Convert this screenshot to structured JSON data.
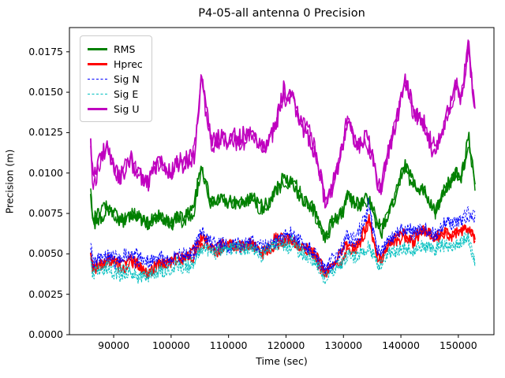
{
  "window": {
    "title": "P4-05-all antenna 0 Precision"
  },
  "chart_data": {
    "type": "line",
    "title": "P4-05-all antenna 0 Precision",
    "xlabel": "Time (sec)",
    "ylabel": "Precision (m)",
    "xlim": [
      82300,
      156200
    ],
    "ylim": [
      0,
      0.019
    ],
    "xticks": [
      90000,
      100000,
      110000,
      120000,
      130000,
      140000,
      150000
    ],
    "yticks": [
      0.0,
      0.0025,
      0.005,
      0.0075,
      0.01,
      0.0125,
      0.015,
      0.0175
    ],
    "grid": false,
    "legend_position": "upper left",
    "x": [
      86000,
      86400,
      87000,
      88000,
      89000,
      90000,
      91000,
      92000,
      93000,
      94000,
      95000,
      96000,
      97000,
      98000,
      99000,
      100000,
      101000,
      102000,
      103000,
      104000,
      105300,
      106000,
      107000,
      108000,
      109000,
      110000,
      111000,
      112000,
      113000,
      114000,
      115000,
      116000,
      117000,
      118000,
      119000,
      119600,
      120300,
      121000,
      122000,
      123000,
      124000,
      125000,
      126000,
      126800,
      127500,
      128000,
      129000,
      130000,
      130700,
      131500,
      132000,
      133000,
      134000,
      134400,
      135000,
      136000,
      136700,
      137000,
      138000,
      139000,
      140000,
      140700,
      141500,
      142000,
      143000,
      144000,
      145000,
      146000,
      147000,
      148000,
      149000,
      149700,
      150500,
      151000,
      151800,
      152300,
      153000
    ],
    "series": [
      {
        "name": "RMS",
        "color": "#008000",
        "style": "solid",
        "linewidth": 1.8,
        "jitter": 0.00042,
        "wobble": 0.00035,
        "values": [
          0.0084,
          0.0068,
          0.0072,
          0.0076,
          0.0079,
          0.0073,
          0.007,
          0.0073,
          0.0075,
          0.0072,
          0.0069,
          0.0067,
          0.0071,
          0.0074,
          0.0072,
          0.0071,
          0.0075,
          0.0073,
          0.0075,
          0.0078,
          0.0105,
          0.0092,
          0.0082,
          0.0083,
          0.0086,
          0.0083,
          0.0084,
          0.0083,
          0.0084,
          0.0086,
          0.0081,
          0.0079,
          0.0081,
          0.0087,
          0.0092,
          0.0096,
          0.0092,
          0.0097,
          0.0089,
          0.0085,
          0.0083,
          0.0077,
          0.0066,
          0.0059,
          0.0063,
          0.0066,
          0.0072,
          0.0079,
          0.0089,
          0.0082,
          0.008,
          0.0079,
          0.0082,
          0.0083,
          0.0078,
          0.0068,
          0.0066,
          0.007,
          0.0078,
          0.0086,
          0.0096,
          0.0104,
          0.0098,
          0.0094,
          0.0089,
          0.0088,
          0.0081,
          0.0077,
          0.0084,
          0.009,
          0.0097,
          0.0102,
          0.0097,
          0.0106,
          0.0121,
          0.0105,
          0.0091
        ]
      },
      {
        "name": "Hprec",
        "color": "#ff0000",
        "style": "solid",
        "linewidth": 1.8,
        "jitter": 0.00035,
        "wobble": 0.0003,
        "values": [
          0.0052,
          0.0041,
          0.0044,
          0.0045,
          0.0047,
          0.0044,
          0.0042,
          0.0043,
          0.0044,
          0.0042,
          0.0041,
          0.004,
          0.0042,
          0.0044,
          0.0043,
          0.0044,
          0.0047,
          0.0046,
          0.0048,
          0.005,
          0.0058,
          0.0056,
          0.0054,
          0.0053,
          0.0055,
          0.0054,
          0.0055,
          0.0054,
          0.0055,
          0.0057,
          0.0054,
          0.0052,
          0.0054,
          0.0057,
          0.0058,
          0.0059,
          0.0058,
          0.0059,
          0.0055,
          0.0052,
          0.0051,
          0.0048,
          0.0043,
          0.0039,
          0.0041,
          0.0043,
          0.0046,
          0.005,
          0.0056,
          0.0054,
          0.0054,
          0.0059,
          0.0066,
          0.0073,
          0.0062,
          0.005,
          0.0049,
          0.0052,
          0.0056,
          0.0059,
          0.0061,
          0.0062,
          0.006,
          0.0059,
          0.0061,
          0.0063,
          0.0061,
          0.0058,
          0.0062,
          0.0065,
          0.0063,
          0.0065,
          0.0064,
          0.0066,
          0.0067,
          0.0064,
          0.0058
        ]
      },
      {
        "name": "Sig N",
        "color": "#0000ff",
        "style": "dashed",
        "linewidth": 1.1,
        "jitter": 0.0004,
        "wobble": 0.0003,
        "values": [
          0.0058,
          0.0044,
          0.0047,
          0.0048,
          0.005,
          0.0047,
          0.0046,
          0.0047,
          0.0049,
          0.0047,
          0.0046,
          0.0045,
          0.0046,
          0.0048,
          0.0047,
          0.0047,
          0.0049,
          0.0048,
          0.0049,
          0.0051,
          0.0062,
          0.0058,
          0.0055,
          0.0055,
          0.0057,
          0.0055,
          0.0056,
          0.0055,
          0.0056,
          0.0058,
          0.0055,
          0.0053,
          0.0055,
          0.0058,
          0.006,
          0.0061,
          0.006,
          0.0061,
          0.0057,
          0.0054,
          0.0053,
          0.005,
          0.0045,
          0.0041,
          0.0043,
          0.0045,
          0.0048,
          0.0053,
          0.006,
          0.0058,
          0.0058,
          0.0064,
          0.0073,
          0.0083,
          0.0068,
          0.0054,
          0.0053,
          0.0056,
          0.0061,
          0.0064,
          0.0066,
          0.0067,
          0.0065,
          0.0064,
          0.0066,
          0.0068,
          0.0066,
          0.0063,
          0.0067,
          0.007,
          0.0068,
          0.0071,
          0.007,
          0.0072,
          0.0074,
          0.0073,
          0.0071
        ]
      },
      {
        "name": "Sig E",
        "color": "#00bfbf",
        "style": "dashed",
        "linewidth": 1.1,
        "jitter": 0.0004,
        "wobble": 0.0003,
        "values": [
          0.0046,
          0.0036,
          0.0039,
          0.004,
          0.0042,
          0.004,
          0.0038,
          0.0039,
          0.004,
          0.0038,
          0.0036,
          0.0034,
          0.0037,
          0.0039,
          0.0038,
          0.004,
          0.0043,
          0.0042,
          0.0044,
          0.0046,
          0.0054,
          0.0053,
          0.0051,
          0.0051,
          0.0053,
          0.0052,
          0.0053,
          0.0052,
          0.0053,
          0.0055,
          0.0052,
          0.005,
          0.0052,
          0.0054,
          0.0055,
          0.0056,
          0.0055,
          0.0056,
          0.0053,
          0.005,
          0.0049,
          0.0046,
          0.004,
          0.0034,
          0.0036,
          0.0038,
          0.0041,
          0.0044,
          0.0048,
          0.0047,
          0.0047,
          0.005,
          0.0053,
          0.0055,
          0.0052,
          0.0045,
          0.0044,
          0.0047,
          0.005,
          0.0052,
          0.0054,
          0.0055,
          0.0053,
          0.0052,
          0.0054,
          0.0056,
          0.0055,
          0.0052,
          0.0056,
          0.0058,
          0.0057,
          0.0058,
          0.0057,
          0.0059,
          0.006,
          0.0052,
          0.0044
        ]
      },
      {
        "name": "Sig U",
        "color": "#bf00bf",
        "style": "solid",
        "linewidth": 1.8,
        "jitter": 0.00055,
        "wobble": 0.00045,
        "values": [
          0.0118,
          0.0092,
          0.01,
          0.0109,
          0.0115,
          0.0106,
          0.01,
          0.0105,
          0.011,
          0.0104,
          0.0099,
          0.0096,
          0.0103,
          0.0107,
          0.0104,
          0.0103,
          0.0109,
          0.0106,
          0.0109,
          0.0114,
          0.016,
          0.0138,
          0.0118,
          0.0121,
          0.0127,
          0.0122,
          0.0124,
          0.0121,
          0.0124,
          0.0127,
          0.0119,
          0.0114,
          0.0119,
          0.0131,
          0.0142,
          0.015,
          0.0144,
          0.0149,
          0.0136,
          0.0128,
          0.0124,
          0.0114,
          0.0098,
          0.0083,
          0.009,
          0.0094,
          0.0104,
          0.0117,
          0.0136,
          0.0124,
          0.012,
          0.0117,
          0.012,
          0.0118,
          0.0112,
          0.0094,
          0.009,
          0.0098,
          0.0112,
          0.0126,
          0.0143,
          0.0158,
          0.0148,
          0.0141,
          0.0134,
          0.0131,
          0.012,
          0.0113,
          0.0124,
          0.0134,
          0.0146,
          0.0157,
          0.0146,
          0.016,
          0.0184,
          0.016,
          0.0136
        ]
      }
    ]
  }
}
